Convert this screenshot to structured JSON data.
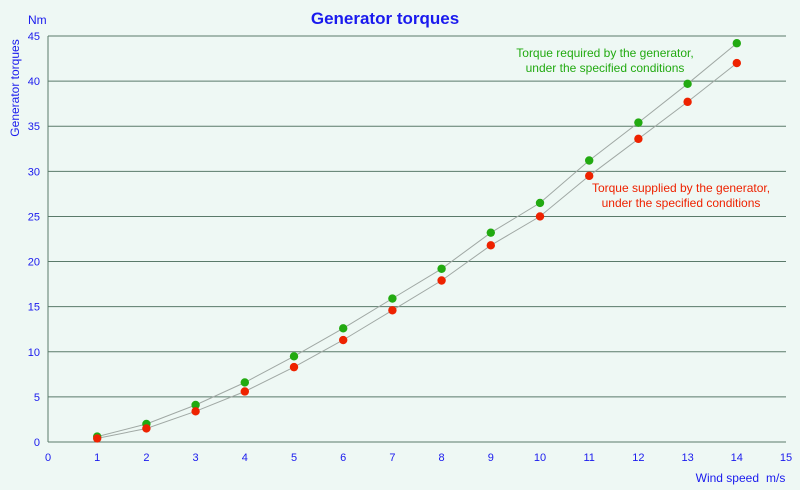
{
  "chart_data": {
    "type": "scatter",
    "title": "Generator torques",
    "ylabel": "Generator torques",
    "y_unit": "Nm",
    "xlabel": "Wind speed",
    "x_unit": "m/s",
    "xlim": [
      0,
      15
    ],
    "ylim": [
      0,
      45
    ],
    "x_ticks": [
      0,
      1,
      2,
      3,
      4,
      5,
      6,
      7,
      8,
      9,
      10,
      11,
      12,
      13,
      14,
      15
    ],
    "y_ticks": [
      0,
      5,
      10,
      15,
      20,
      25,
      30,
      35,
      40,
      45
    ],
    "grid": "horizontal",
    "x": [
      1,
      2,
      3,
      4,
      5,
      6,
      7,
      8,
      9,
      10,
      11,
      12,
      13,
      14
    ],
    "series": [
      {
        "color": "#22aa11",
        "values": [
          0.6,
          2.0,
          4.1,
          6.6,
          9.5,
          12.6,
          15.9,
          19.2,
          23.2,
          26.5,
          31.2,
          35.4,
          39.7,
          44.2
        ]
      },
      {
        "color": "#ee2200",
        "values": [
          0.4,
          1.5,
          3.4,
          5.6,
          8.3,
          11.3,
          14.6,
          17.9,
          21.8,
          25.0,
          29.5,
          33.6,
          37.7,
          42.0
        ]
      }
    ],
    "annotations": [
      {
        "series": 0,
        "lines": [
          "Torque required by the generator,",
          "under the specified conditions"
        ]
      },
      {
        "series": 1,
        "lines": [
          "Torque supplied by the generator,",
          "under the specified conditions"
        ]
      }
    ],
    "colors": {
      "axis_text": "#1a1aee",
      "title": "#1a1aee",
      "grid": "#5a7a6a",
      "curve": "#a0a8a4"
    }
  }
}
